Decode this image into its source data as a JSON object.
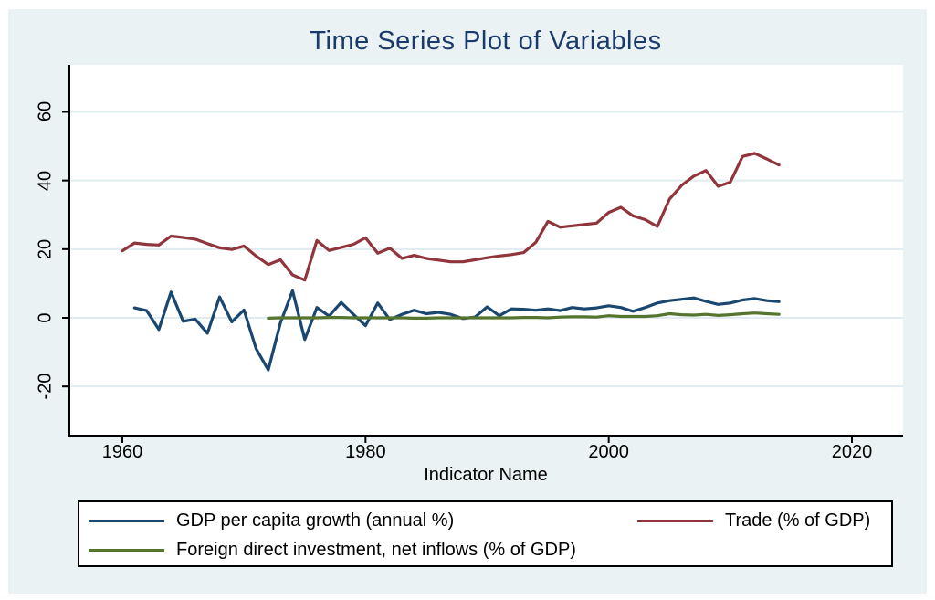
{
  "figure": {
    "background_color": "#eaf2f3",
    "plot_background_color": "#ffffff",
    "gridline_color": "#e1ecf0",
    "axis_color": "#000000",
    "title_color": "#1a3a6b"
  },
  "chart_data": {
    "type": "line",
    "title": "Time Series Plot of Variables",
    "xlabel": "Indicator Name",
    "ylabel": "",
    "x_ticks": [
      1960,
      1980,
      2000,
      2020
    ],
    "y_ticks": [
      -20,
      0,
      20,
      40,
      60
    ],
    "x_range": [
      1955.6,
      2024.2
    ],
    "y_range": [
      -34.3,
      73.7
    ],
    "grid": true,
    "legend_position": "bottom",
    "series": [
      {
        "name": "GDP per capita growth (annual %)",
        "color": "#1a476f",
        "start_year": 1961,
        "values": [
          2.9,
          2.1,
          -3.4,
          7.5,
          -1.0,
          -0.4,
          -4.5,
          6.1,
          -1.2,
          2.3,
          -9.0,
          -15.2,
          -1.5,
          7.9,
          -6.3,
          3.0,
          0.5,
          4.5,
          1.0,
          -2.3,
          4.3,
          -0.5,
          1.0,
          2.2,
          1.2,
          1.6,
          1.0,
          -0.2,
          0.2,
          3.2,
          0.6,
          2.6,
          2.5,
          2.2,
          2.6,
          2.1,
          3.0,
          2.6,
          2.9,
          3.5,
          3.0,
          1.9,
          3.0,
          4.3,
          5.0,
          5.4,
          5.8,
          4.8,
          3.9,
          4.3,
          5.2,
          5.6,
          5.0,
          4.7
        ]
      },
      {
        "name": "Trade (% of GDP)",
        "color": "#90353b",
        "start_year": 1960,
        "values": [
          19.5,
          21.8,
          21.4,
          21.2,
          23.8,
          23.4,
          22.9,
          21.6,
          20.4,
          19.9,
          20.9,
          18.0,
          15.5,
          16.9,
          12.5,
          11.0,
          22.5,
          19.6,
          20.5,
          21.4,
          23.3,
          18.8,
          20.3,
          17.3,
          18.2,
          17.3,
          16.8,
          16.3,
          16.3,
          16.9,
          17.5,
          18.0,
          18.4,
          19.0,
          22.0,
          28.1,
          26.4,
          26.8,
          27.2,
          27.6,
          30.7,
          32.2,
          29.7,
          28.6,
          26.6,
          34.6,
          38.6,
          41.3,
          42.9,
          38.3,
          39.5,
          47.0,
          47.9,
          46.3,
          44.5
        ]
      },
      {
        "name": "Foreign direct investment, net inflows (% of GDP)",
        "color": "#55752f",
        "start_year": 1972,
        "values": [
          -0.1,
          0.0,
          0.0,
          0.0,
          0.0,
          0.1,
          0.1,
          0.0,
          0.0,
          0.0,
          0.0,
          0.0,
          -0.1,
          -0.1,
          0.0,
          0.0,
          0.0,
          0.0,
          0.0,
          0.0,
          0.0,
          0.1,
          0.1,
          0.0,
          0.2,
          0.3,
          0.3,
          0.2,
          0.6,
          0.4,
          0.4,
          0.4,
          0.6,
          1.2,
          0.9,
          0.8,
          1.0,
          0.7,
          0.9,
          1.2,
          1.4,
          1.2,
          1.0
        ]
      }
    ]
  }
}
